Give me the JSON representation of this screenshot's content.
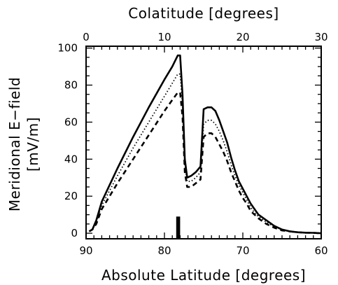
{
  "chart_data": {
    "type": "line",
    "title": "",
    "xlabel_bottom": "Absolute Latitude [degrees]",
    "xlabel_top": "Colatitude [degrees]",
    "ylabel_line1": "Meridional E−field",
    "ylabel_line2": "[mV/m]",
    "xlim_bottom": [
      90,
      60
    ],
    "xlim_top": [
      0,
      30
    ],
    "ylim": [
      -3,
      101
    ],
    "x_ticks_bottom": [
      90,
      80,
      70,
      60
    ],
    "x_ticks_top": [
      0,
      10,
      20,
      30
    ],
    "y_ticks": [
      0,
      20,
      40,
      60,
      80,
      100
    ],
    "grid": false,
    "legend": "none",
    "series": [
      {
        "style": "solid",
        "x": [
          89.6,
          89.2,
          88.7,
          88,
          86,
          84,
          82,
          80,
          79,
          78.3,
          78.0,
          77.7,
          77.4,
          77.1,
          76.6,
          76,
          75.4,
          75.0,
          74.5,
          74.0,
          73.5,
          73.0,
          72.5,
          72.0,
          71.5,
          71.0,
          70.5,
          70.0,
          69.5,
          69.0,
          68.5,
          68.0,
          67.0,
          66.0,
          65.0,
          64.0,
          63.0,
          62.0,
          61.0,
          60.5,
          60.0
        ],
        "y": [
          1,
          2,
          7,
          17,
          35,
          52,
          68,
          83,
          90,
          96,
          96,
          75,
          40,
          30,
          31,
          33,
          36,
          67,
          68,
          68,
          66,
          61,
          55,
          49,
          41,
          34,
          28,
          24,
          20,
          16,
          13,
          10,
          7,
          4,
          2,
          1,
          0.5,
          0.3,
          0.2,
          0.1,
          0
        ]
      },
      {
        "style": "dotted",
        "x": [
          89.6,
          89.2,
          88.7,
          88,
          86,
          84,
          82,
          80,
          79,
          78.3,
          78.0,
          77.7,
          77.4,
          77.1,
          76.6,
          76,
          75.4,
          75.0,
          74.5,
          74.0,
          73.5,
          73.0,
          72.5,
          72.0,
          71.5,
          71.0,
          70.5,
          70.0,
          69.5,
          69.0,
          68.5,
          68.0,
          67.0,
          66.0,
          65.0,
          64.0,
          63.0,
          62.0,
          61.0,
          60.5,
          60.0
        ],
        "y": [
          1,
          2,
          6,
          15,
          31,
          46,
          60,
          74,
          81,
          86,
          86,
          70,
          37,
          28,
          28,
          30,
          33,
          59,
          61,
          61,
          59,
          55,
          50,
          44,
          37,
          31,
          26,
          22,
          18,
          14,
          11,
          9,
          6,
          3.5,
          2,
          1,
          0.5,
          0.3,
          0.2,
          0.1,
          0
        ]
      },
      {
        "style": "dashed",
        "x": [
          89.6,
          89.2,
          88.7,
          88,
          86,
          84,
          82,
          80,
          79,
          78.3,
          78.0,
          77.7,
          77.4,
          77.1,
          76.6,
          76,
          75.4,
          75.0,
          74.5,
          74.0,
          73.5,
          73.0,
          72.5,
          72.0,
          71.5,
          71.0,
          70.5,
          70.0,
          69.5,
          69.0,
          68.5,
          68.0,
          67.0,
          66.0,
          65.0,
          64.0,
          63.0,
          62.0,
          61.0,
          60.5,
          60.0
        ],
        "y": [
          1,
          2,
          5,
          13,
          27,
          40,
          53,
          66,
          72,
          76,
          76,
          63,
          33,
          25,
          25,
          27,
          29,
          52,
          54,
          54,
          52,
          48,
          44,
          39,
          33,
          28,
          23,
          19,
          16,
          12,
          10,
          8,
          5,
          3,
          1.5,
          1,
          0.5,
          0.3,
          0.2,
          0.1,
          0
        ]
      }
    ],
    "marker_bar": {
      "x_left": 78.5,
      "x_right": 78.0,
      "y_top": 9
    }
  }
}
